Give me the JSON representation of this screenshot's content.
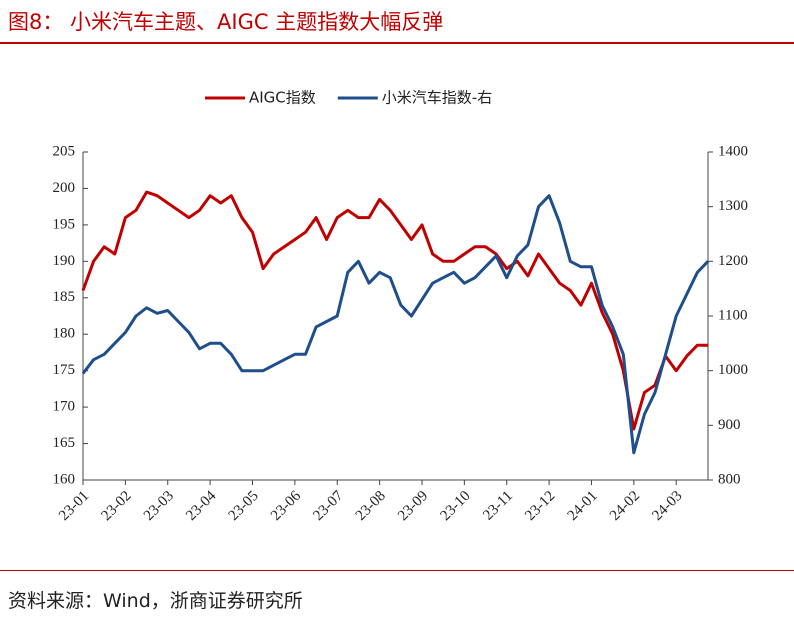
{
  "title": "图8：  小米汽车主题、AIGC 主题指数大幅反弹",
  "source": "资料来源：Wind，浙商证券研究所",
  "chart_data": {
    "type": "line",
    "categories": [
      "23-01",
      null,
      null,
      null,
      "23-02",
      null,
      null,
      null,
      "23-03",
      null,
      null,
      null,
      "23-04",
      null,
      null,
      null,
      "23-05",
      null,
      null,
      null,
      "23-06",
      null,
      null,
      null,
      "23-07",
      null,
      null,
      null,
      "23-08",
      null,
      null,
      null,
      "23-09",
      null,
      null,
      null,
      "23-10",
      null,
      null,
      null,
      "23-11",
      null,
      null,
      null,
      "23-12",
      null,
      null,
      null,
      "24-01",
      null,
      null,
      null,
      "24-02",
      null,
      null,
      null,
      "24-03",
      null,
      null,
      null
    ],
    "series": [
      {
        "name": "AIGC指数",
        "color": "#c00000",
        "axis": "y",
        "values": [
          186,
          190,
          192,
          191,
          196,
          197,
          199.5,
          199,
          198,
          197,
          196,
          197,
          199,
          198,
          199,
          196,
          194,
          189,
          191,
          192,
          193,
          194,
          196,
          193,
          196,
          197,
          196,
          196,
          198.5,
          197,
          195,
          193,
          195,
          191,
          190,
          190,
          191,
          192,
          192,
          191,
          189,
          190,
          188,
          191,
          189,
          187,
          186,
          184,
          187,
          183,
          180,
          175,
          167,
          172,
          173,
          177,
          175,
          177,
          178.5,
          178.5
        ]
      },
      {
        "name": "小米汽车指数-右",
        "color": "#1f4e8c",
        "axis": "y2",
        "values": [
          995,
          1020,
          1030,
          1050,
          1070,
          1100,
          1115,
          1105,
          1110,
          1090,
          1070,
          1040,
          1050,
          1050,
          1030,
          1000,
          1000,
          1000,
          1010,
          1020,
          1030,
          1030,
          1080,
          1090,
          1100,
          1180,
          1200,
          1160,
          1180,
          1170,
          1120,
          1100,
          1130,
          1160,
          1170,
          1180,
          1160,
          1170,
          1190,
          1210,
          1170,
          1210,
          1230,
          1300,
          1320,
          1270,
          1200,
          1190,
          1190,
          1120,
          1080,
          1030,
          850,
          920,
          960,
          1030,
          1100,
          1140,
          1180,
          1200
        ]
      }
    ],
    "ylim": [
      160,
      205
    ],
    "yticks": [
      160,
      165,
      170,
      175,
      180,
      185,
      190,
      195,
      200,
      205
    ],
    "y2lim": [
      800,
      1400
    ],
    "y2ticks": [
      800,
      900,
      1000,
      1100,
      1200,
      1300,
      1400
    ]
  }
}
